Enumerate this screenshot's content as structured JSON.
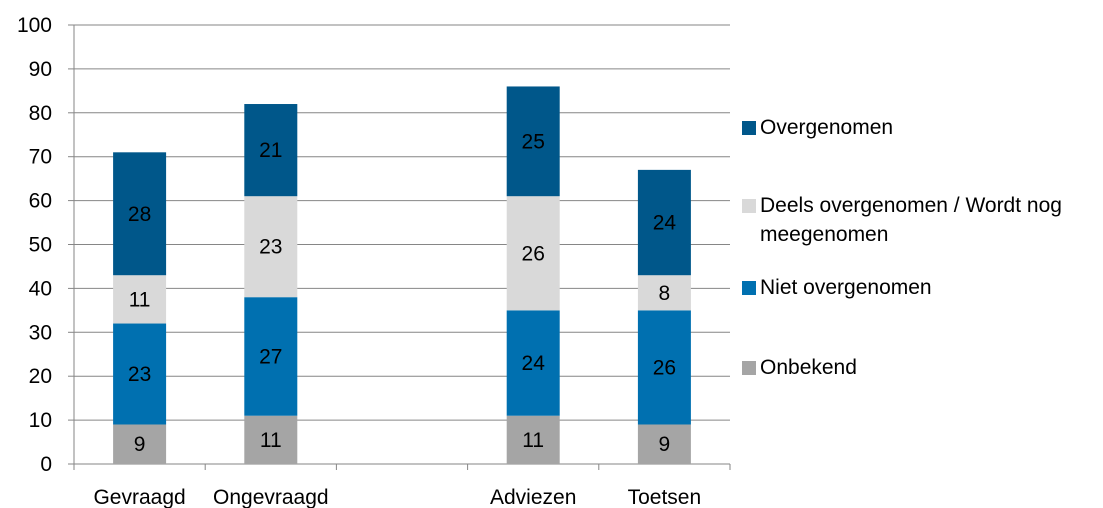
{
  "chart_data": {
    "type": "bar",
    "stacked": true,
    "categories": [
      "Gevraagd",
      "Ongevraagd",
      "",
      "Adviezen",
      "Toetsen"
    ],
    "series": [
      {
        "name": "Onbekend",
        "color": "#a5a5a5",
        "values": [
          9,
          11,
          null,
          11,
          9
        ]
      },
      {
        "name": "Niet overgenomen",
        "color": "#0070b0",
        "values": [
          23,
          27,
          null,
          24,
          26
        ]
      },
      {
        "name": "Deels overgenomen / Wordt nog meegenomen",
        "color": "#d9d9d9",
        "values": [
          11,
          23,
          null,
          26,
          8
        ]
      },
      {
        "name": "Overgenomen",
        "color": "#00578a",
        "values": [
          28,
          21,
          null,
          25,
          24
        ]
      }
    ],
    "ylim": [
      0,
      100
    ],
    "yticks": [
      0,
      10,
      20,
      30,
      40,
      50,
      60,
      70,
      80,
      90,
      100
    ],
    "grid": true,
    "legend_position": "right",
    "legend_order": [
      "Overgenomen",
      "Deels overgenomen / Wordt nog meegenomen",
      "Niet overgenomen",
      "Onbekend"
    ],
    "title": "",
    "xlabel": "",
    "ylabel": ""
  }
}
